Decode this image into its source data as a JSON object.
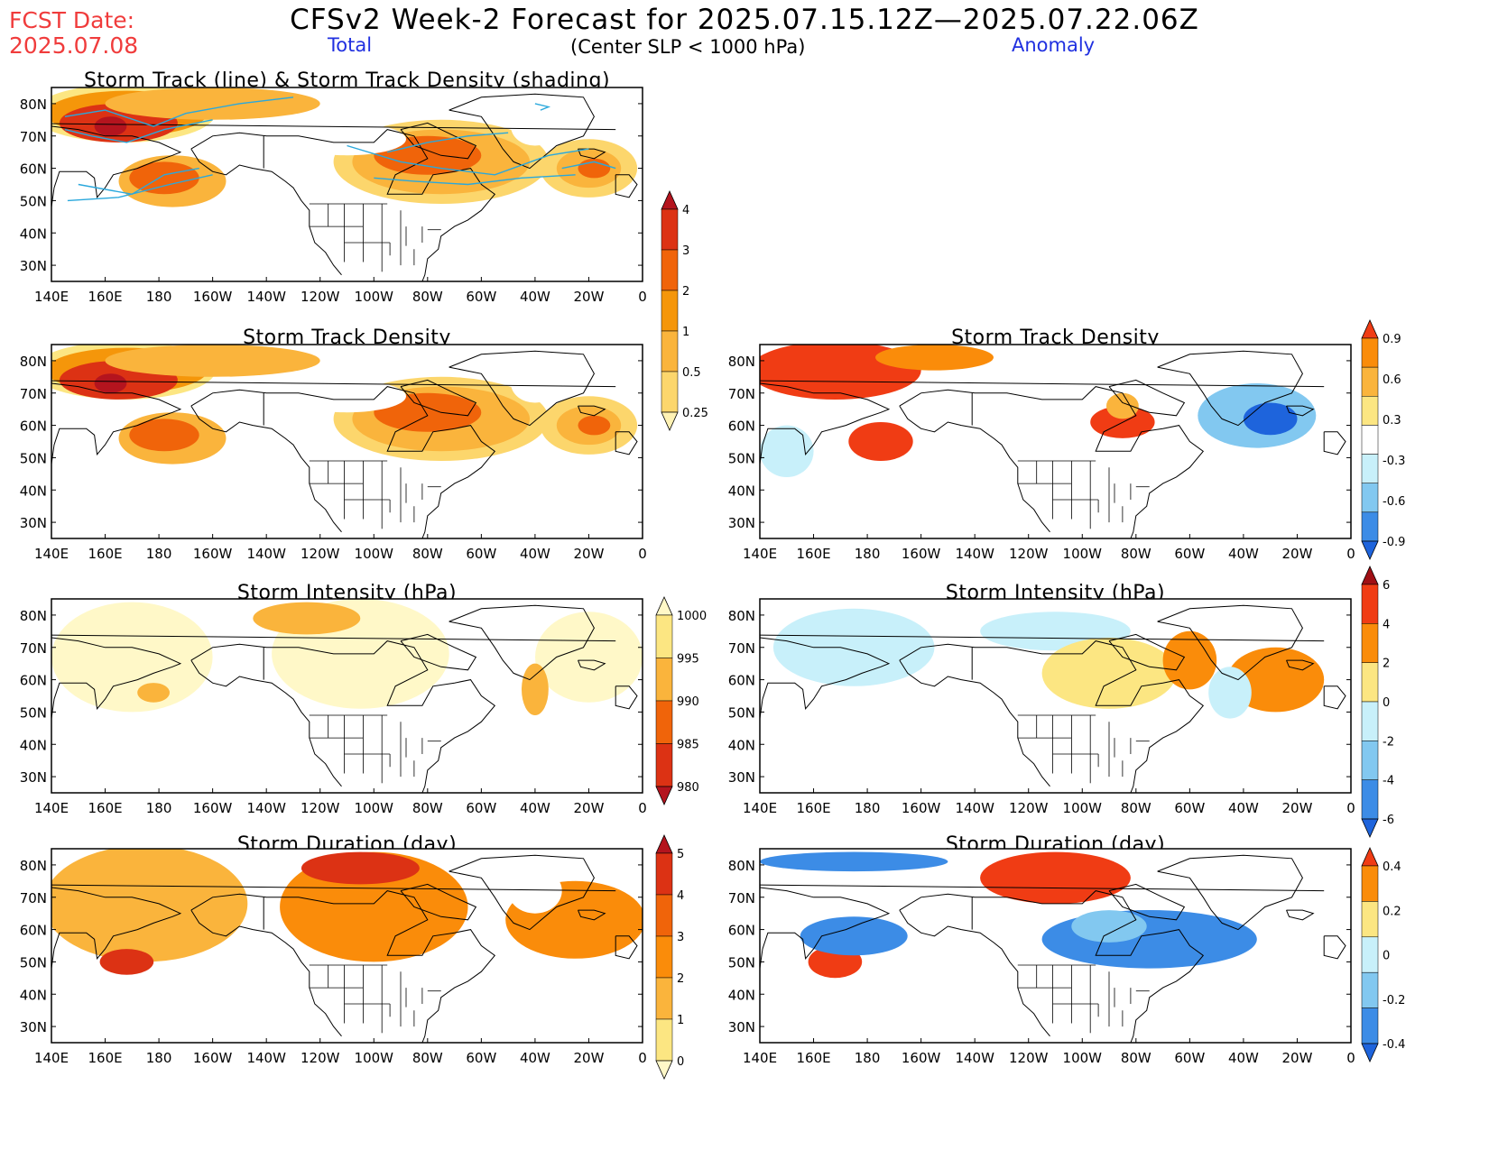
{
  "header": {
    "fcst_label": "FCST Date:",
    "fcst_date": "2025.07.08",
    "title": "CFSv2 Week-2 Forecast for 2025.07.15.12Z—2025.07.22.06Z",
    "total_label": "Total",
    "criterion": "(Center SLP < 1000 hPa)",
    "anomaly_label": "Anomaly"
  },
  "axes": {
    "lat_labels": [
      "80N",
      "70N",
      "60N",
      "50N",
      "40N",
      "30N"
    ],
    "lon_labels": [
      "140E",
      "160E",
      "180",
      "160W",
      "140W",
      "120W",
      "100W",
      "80W",
      "60W",
      "40W",
      "20W",
      "0"
    ]
  },
  "panels": [
    {
      "id": "track-total",
      "title": "Storm Track (line) & Storm Track Density (shading)",
      "field": "density_total",
      "tracks": true
    },
    {
      "id": "density-total",
      "title": "Storm Track Density",
      "field": "density_total",
      "tracks": false
    },
    {
      "id": "density-anom",
      "title": "Storm Track Density",
      "field": "density_anom",
      "tracks": false
    },
    {
      "id": "intensity-total",
      "title": "Storm Intensity (hPa)",
      "field": "intensity_total",
      "tracks": false
    },
    {
      "id": "intensity-anom",
      "title": "Storm Intensity (hPa)",
      "field": "intensity_anom",
      "tracks": false
    },
    {
      "id": "duration-total",
      "title": "Storm Duration (day)",
      "field": "duration_total",
      "tracks": false
    },
    {
      "id": "duration-anom",
      "title": "Storm Duration (day)",
      "field": "duration_anom",
      "tracks": false
    }
  ],
  "colorbars": [
    {
      "id": "cb-density",
      "labels": [
        "4",
        "3",
        "2",
        "1",
        "0.5",
        "0.25"
      ],
      "colors": [
        "#b4141e",
        "#dc3214",
        "#f0640a",
        "#f5960a",
        "#fab43c",
        "#fcd66c",
        "#fff2b4"
      ]
    },
    {
      "id": "cb-density-anom",
      "labels": [
        "0.9",
        "0.6",
        "0.3",
        "-0.3",
        "-0.6",
        "-0.9"
      ],
      "colors": [
        "#f03c14",
        "#fa8c0a",
        "#fab43c",
        "#fce682",
        "#ffffff",
        "#c8f0fa",
        "#82c8f0",
        "#3c8ce6",
        "#1e64dc"
      ]
    },
    {
      "id": "cb-intensity",
      "labels": [
        "1000",
        "995",
        "990",
        "985",
        "980"
      ],
      "colors": [
        "#fff8c8",
        "#fce682",
        "#fab43c",
        "#f0640a",
        "#dc3214",
        "#b4141e"
      ]
    },
    {
      "id": "cb-intensity-anom",
      "labels": [
        "6",
        "4",
        "2",
        "0",
        "-2",
        "-4",
        "-6"
      ],
      "colors": [
        "#a00f14",
        "#f03c14",
        "#fa8c0a",
        "#fce682",
        "#c8f0fa",
        "#82c8f0",
        "#3c8ce6",
        "#1e64dc"
      ]
    },
    {
      "id": "cb-duration",
      "labels": [
        "5",
        "4",
        "3",
        "2",
        "1",
        "0"
      ],
      "colors": [
        "#b4141e",
        "#dc3214",
        "#f0640a",
        "#fa8c0a",
        "#fab43c",
        "#fce682",
        "#fff8c8"
      ]
    },
    {
      "id": "cb-duration-anom",
      "labels": [
        "0.4",
        "0.2",
        "0",
        "-0.2",
        "-0.4"
      ],
      "colors": [
        "#f03c14",
        "#fa8c0a",
        "#fce682",
        "#c8f0fa",
        "#82c8f0",
        "#3c8ce6",
        "#1e64dc"
      ]
    }
  ],
  "fields": {
    "density_total": [
      {
        "lon": 167,
        "lat": 77,
        "rx": 34,
        "ry": 9,
        "c": "#fce682"
      },
      {
        "lon": 168,
        "lat": 77,
        "rx": 30,
        "ry": 7,
        "c": "#f5960a"
      },
      {
        "lon": 165,
        "lat": 74,
        "rx": 22,
        "ry": 6,
        "c": "#dc3214"
      },
      {
        "lon": 162,
        "lat": 73,
        "rx": 6,
        "ry": 3,
        "c": "#b4141e"
      },
      {
        "lon": -160,
        "lat": 80,
        "rx": 40,
        "ry": 5,
        "c": "#fab43c"
      },
      {
        "lon": -175,
        "lat": 56,
        "rx": 20,
        "ry": 8,
        "c": "#fab43c"
      },
      {
        "lon": -178,
        "lat": 57,
        "rx": 13,
        "ry": 5,
        "c": "#f0640a"
      },
      {
        "lon": -75,
        "lat": 62,
        "rx": 40,
        "ry": 13,
        "c": "#fcd66c"
      },
      {
        "lon": -75,
        "lat": 62,
        "rx": 33,
        "ry": 10,
        "c": "#fab43c"
      },
      {
        "lon": -80,
        "lat": 64,
        "rx": 20,
        "ry": 6,
        "c": "#f0640a"
      },
      {
        "lon": -20,
        "lat": 60,
        "rx": 18,
        "ry": 9,
        "c": "#fcd66c"
      },
      {
        "lon": -20,
        "lat": 60,
        "rx": 12,
        "ry": 6,
        "c": "#fab43c"
      },
      {
        "lon": -18,
        "lat": 60,
        "rx": 6,
        "ry": 3,
        "c": "#f0640a"
      },
      {
        "lon": -40,
        "lat": 73,
        "rx": 9,
        "ry": 6,
        "c": "#ffffff"
      },
      {
        "lon": -110,
        "lat": 69,
        "rx": 22,
        "ry": 5,
        "c": "#ffffff"
      }
    ],
    "density_anom": [
      {
        "lon": 168,
        "lat": 77,
        "rx": 32,
        "ry": 9,
        "c": "#f03c14"
      },
      {
        "lon": -155,
        "lat": 81,
        "rx": 22,
        "ry": 4,
        "c": "#fa8c0a"
      },
      {
        "lon": -175,
        "lat": 55,
        "rx": 12,
        "ry": 6,
        "c": "#f03c14"
      },
      {
        "lon": -85,
        "lat": 61,
        "rx": 12,
        "ry": 5,
        "c": "#f03c14"
      },
      {
        "lon": -85,
        "lat": 66,
        "rx": 6,
        "ry": 4,
        "c": "#fab43c"
      },
      {
        "lon": 150,
        "lat": 52,
        "rx": 10,
        "ry": 8,
        "c": "#c8f0fa"
      },
      {
        "lon": -35,
        "lat": 63,
        "rx": 22,
        "ry": 10,
        "c": "#82c8f0"
      },
      {
        "lon": -30,
        "lat": 62,
        "rx": 10,
        "ry": 5,
        "c": "#1e64dc"
      }
    ],
    "intensity_total": [
      {
        "lon": 170,
        "lat": 67,
        "rx": 30,
        "ry": 17,
        "c": "#fff8c8"
      },
      {
        "lon": -105,
        "lat": 68,
        "rx": 33,
        "ry": 17,
        "c": "#fff8c8"
      },
      {
        "lon": -20,
        "lat": 67,
        "rx": 20,
        "ry": 14,
        "c": "#fff8c8"
      },
      {
        "lon": -125,
        "lat": 79,
        "rx": 20,
        "ry": 5,
        "c": "#fab43c"
      },
      {
        "lon": -40,
        "lat": 57,
        "rx": 5,
        "ry": 8,
        "c": "#fab43c"
      },
      {
        "lon": 178,
        "lat": 56,
        "rx": 6,
        "ry": 3,
        "c": "#fab43c"
      }
    ],
    "intensity_anom": [
      {
        "lon": 175,
        "lat": 70,
        "rx": 30,
        "ry": 12,
        "c": "#c8f0fa"
      },
      {
        "lon": -110,
        "lat": 75,
        "rx": 28,
        "ry": 6,
        "c": "#c8f0fa"
      },
      {
        "lon": -90,
        "lat": 62,
        "rx": 25,
        "ry": 11,
        "c": "#fce682"
      },
      {
        "lon": -60,
        "lat": 66,
        "rx": 10,
        "ry": 9,
        "c": "#fa8c0a"
      },
      {
        "lon": -28,
        "lat": 60,
        "rx": 18,
        "ry": 10,
        "c": "#fa8c0a"
      },
      {
        "lon": -45,
        "lat": 56,
        "rx": 8,
        "ry": 8,
        "c": "#c8f0fa"
      }
    ],
    "duration_total": [
      {
        "lon": 175,
        "lat": 68,
        "rx": 38,
        "ry": 18,
        "c": "#fab43c"
      },
      {
        "lon": -100,
        "lat": 67,
        "rx": 35,
        "ry": 17,
        "c": "#fa8c0a"
      },
      {
        "lon": -25,
        "lat": 63,
        "rx": 26,
        "ry": 12,
        "c": "#fa8c0a"
      },
      {
        "lon": -105,
        "lat": 79,
        "rx": 22,
        "ry": 5,
        "c": "#dc3214"
      },
      {
        "lon": 168,
        "lat": 50,
        "rx": 10,
        "ry": 4,
        "c": "#dc3214"
      },
      {
        "lon": -40,
        "lat": 72,
        "rx": 10,
        "ry": 7,
        "c": "#ffffff"
      }
    ],
    "duration_anom": [
      {
        "lon": 175,
        "lat": 81,
        "rx": 35,
        "ry": 3,
        "c": "#3c8ce6"
      },
      {
        "lon": -110,
        "lat": 76,
        "rx": 28,
        "ry": 8,
        "c": "#f03c14"
      },
      {
        "lon": 168,
        "lat": 50,
        "rx": 10,
        "ry": 5,
        "c": "#f03c14"
      },
      {
        "lon": -75,
        "lat": 57,
        "rx": 40,
        "ry": 9,
        "c": "#3c8ce6"
      },
      {
        "lon": -90,
        "lat": 61,
        "rx": 14,
        "ry": 5,
        "c": "#82c8f0"
      },
      {
        "lon": 175,
        "lat": 58,
        "rx": 20,
        "ry": 6,
        "c": "#3c8ce6"
      }
    ]
  },
  "tracks": [
    [
      [
        145,
        76
      ],
      [
        160,
        78
      ],
      [
        178,
        73
      ],
      [
        -170,
        77
      ],
      [
        -150,
        80
      ],
      [
        -130,
        82
      ]
    ],
    [
      [
        145,
        72
      ],
      [
        155,
        70
      ],
      [
        168,
        68
      ],
      [
        -178,
        72
      ],
      [
        -160,
        75
      ]
    ],
    [
      [
        146,
        50
      ],
      [
        165,
        51
      ],
      [
        -176,
        55
      ],
      [
        -160,
        58
      ]
    ],
    [
      [
        150,
        55
      ],
      [
        170,
        52
      ],
      [
        -178,
        58
      ],
      [
        -165,
        60
      ]
    ],
    [
      [
        -110,
        67
      ],
      [
        -90,
        62
      ],
      [
        -75,
        60
      ],
      [
        -55,
        58
      ],
      [
        -35,
        64
      ],
      [
        -20,
        66
      ]
    ],
    [
      [
        -100,
        57
      ],
      [
        -85,
        56
      ],
      [
        -65,
        55
      ],
      [
        -45,
        57
      ],
      [
        -25,
        58
      ]
    ],
    [
      [
        -95,
        65
      ],
      [
        -80,
        68
      ],
      [
        -65,
        70
      ],
      [
        -50,
        71
      ]
    ],
    [
      [
        -40,
        80
      ],
      [
        -35,
        79
      ],
      [
        -38,
        78
      ]
    ],
    [
      [
        -30,
        60
      ],
      [
        -18,
        62
      ],
      [
        -10,
        60
      ]
    ]
  ]
}
